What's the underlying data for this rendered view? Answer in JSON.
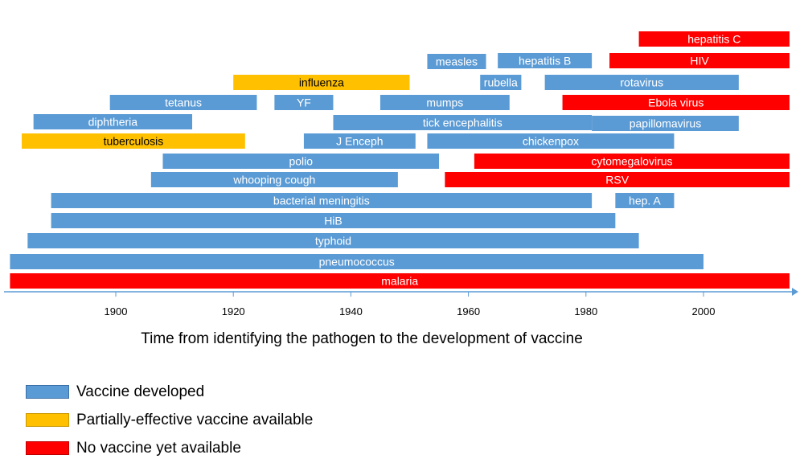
{
  "colors": {
    "developed": "#5b9bd5",
    "partial": "#ffc000",
    "none": "#ff0000",
    "axis": "#5b9bd5"
  },
  "legend": {
    "developed": "Vaccine developed",
    "partial": "Partially-effective vaccine available",
    "none": "No vaccine yet available"
  },
  "chart_data": {
    "type": "bar",
    "orientation": "horizontal-range",
    "xlabel": "Time from identifying the pathogen to the development of vaccine",
    "xlim": [
      1882,
      2016
    ],
    "xticks": [
      1900,
      1920,
      1940,
      1960,
      1980,
      2000
    ],
    "grid": false,
    "legend_position": "bottom-left",
    "bars": [
      {
        "label": "hepatitis C",
        "start": 1989,
        "end": 2015,
        "status": "none"
      },
      {
        "label": "measles",
        "start": 1953,
        "end": 1963,
        "status": "developed"
      },
      {
        "label": "hepatitis B",
        "start": 1965,
        "end": 1981,
        "status": "developed"
      },
      {
        "label": "HIV",
        "start": 1984,
        "end": 2015,
        "status": "none"
      },
      {
        "label": "influenza",
        "start": 1920,
        "end": 1950,
        "status": "partial"
      },
      {
        "label": "rubella",
        "start": 1962,
        "end": 1969,
        "status": "developed"
      },
      {
        "label": "rotavirus",
        "start": 1973,
        "end": 2006,
        "status": "developed"
      },
      {
        "label": "tetanus",
        "start": 1899,
        "end": 1924,
        "status": "developed"
      },
      {
        "label": "YF",
        "start": 1927,
        "end": 1937,
        "status": "developed"
      },
      {
        "label": "mumps",
        "start": 1945,
        "end": 1967,
        "status": "developed"
      },
      {
        "label": "Ebola virus",
        "start": 1976,
        "end": 2015,
        "status": "none"
      },
      {
        "label": "diphtheria",
        "start": 1886,
        "end": 1913,
        "status": "developed"
      },
      {
        "label": "tick encephalitis",
        "start": 1937,
        "end": 1981,
        "status": "developed"
      },
      {
        "label": "papillomavirus",
        "start": 1981,
        "end": 2006,
        "status": "developed"
      },
      {
        "label": "tuberculosis",
        "start": 1884,
        "end": 1922,
        "status": "partial"
      },
      {
        "label": "J Enceph",
        "start": 1932,
        "end": 1951,
        "status": "developed"
      },
      {
        "label": "chickenpox",
        "start": 1953,
        "end": 1995,
        "status": "developed"
      },
      {
        "label": "polio",
        "start": 1908,
        "end": 1955,
        "status": "developed"
      },
      {
        "label": "cytomegalovirus",
        "start": 1961,
        "end": 2015,
        "status": "none"
      },
      {
        "label": "whooping cough",
        "start": 1906,
        "end": 1948,
        "status": "developed"
      },
      {
        "label": "RSV",
        "start": 1956,
        "end": 2015,
        "status": "none"
      },
      {
        "label": "bacterial meningitis",
        "start": 1889,
        "end": 1981,
        "status": "developed"
      },
      {
        "label": "hep. A",
        "start": 1985,
        "end": 1995,
        "status": "developed"
      },
      {
        "label": "HiB",
        "start": 1889,
        "end": 1985,
        "status": "developed"
      },
      {
        "label": "typhoid",
        "start": 1885,
        "end": 1989,
        "status": "developed"
      },
      {
        "label": "pneumococcus",
        "start": 1882,
        "end": 2000,
        "status": "developed"
      },
      {
        "label": "malaria",
        "start": 1882,
        "end": 2015,
        "status": "none"
      }
    ]
  }
}
